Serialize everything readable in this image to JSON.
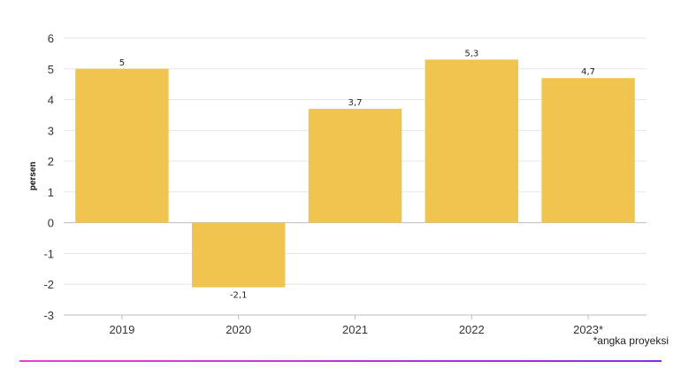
{
  "chart_data": {
    "type": "bar",
    "categories": [
      "2019",
      "2020",
      "2021",
      "2022",
      "2023*"
    ],
    "values": [
      5,
      -2.1,
      3.7,
      5.3,
      4.7
    ],
    "data_labels": [
      "5",
      "-2,1",
      "3,7",
      "5,3",
      "4,7"
    ],
    "ylabel": "persen",
    "ylim": [
      -3,
      6
    ],
    "yticks": [
      -3,
      -2,
      -1,
      0,
      1,
      2,
      3,
      4,
      5,
      6
    ],
    "grid": true,
    "legend": "none",
    "note": "*angka proyeksi",
    "colors": {
      "bar": "#efc550",
      "gradient_start": "#e93fd0",
      "gradient_end": "#8a2be2"
    }
  }
}
